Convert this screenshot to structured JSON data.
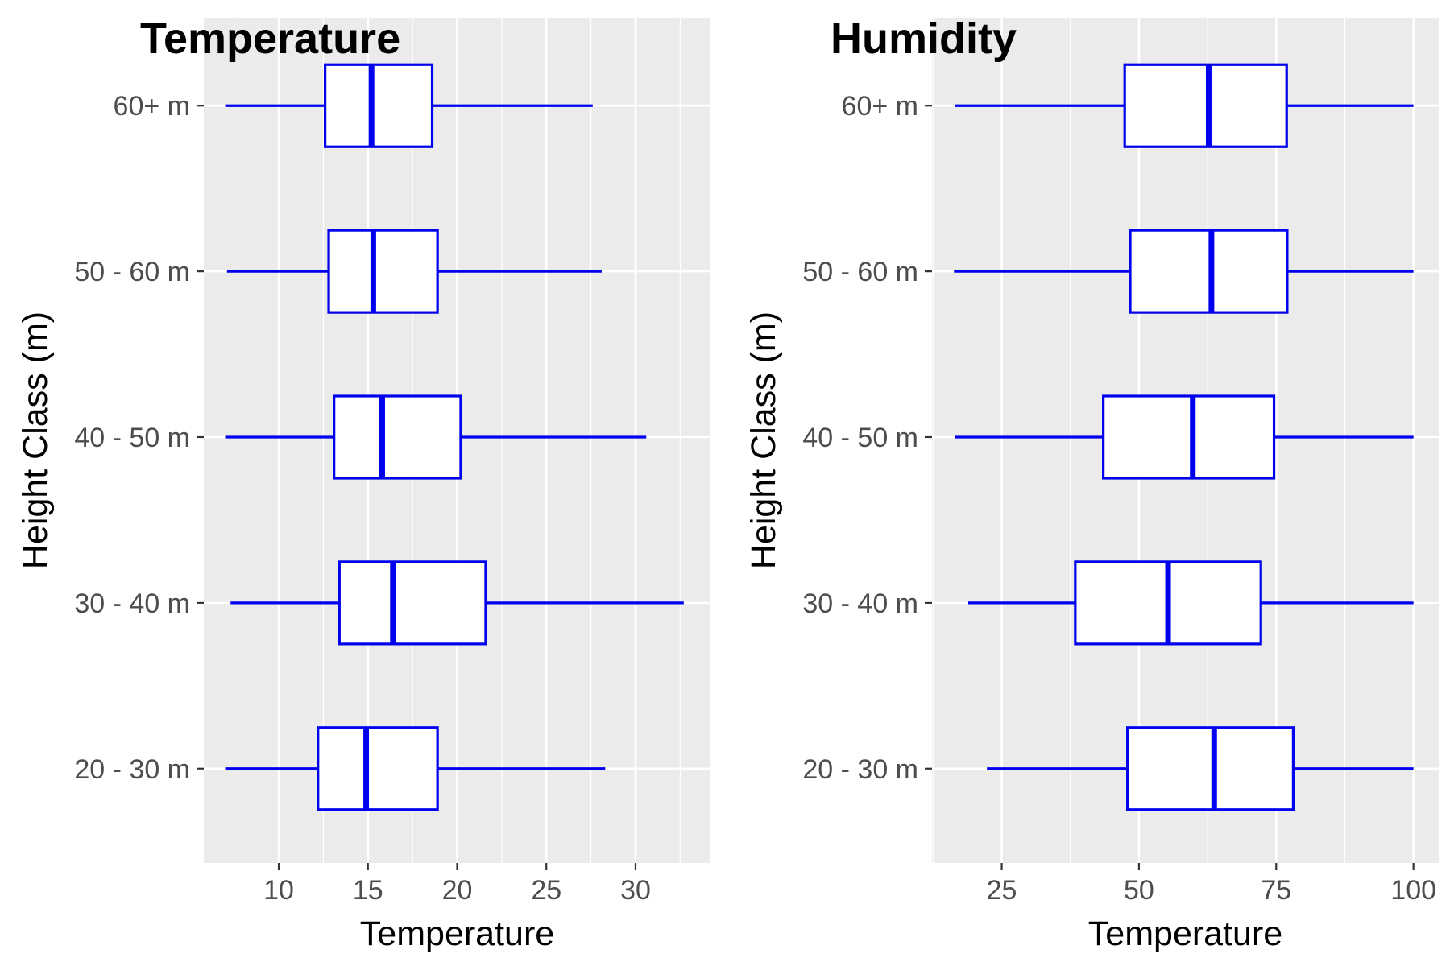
{
  "chart_data": [
    {
      "type": "boxplot",
      "orientation": "horizontal",
      "title": "Temperature",
      "xlabel": "Temperature",
      "ylabel": "Height Class (m)",
      "xlim": [
        5.8,
        34.2
      ],
      "xticks": [
        10,
        15,
        20,
        25,
        30
      ],
      "categories": [
        "20 - 30 m",
        "30 - 40 m",
        "40 - 50 m",
        "50 - 60 m",
        "60+ m"
      ],
      "boxes": [
        {
          "category": "20 - 30 m",
          "min": 7.0,
          "q1": 12.2,
          "median": 14.9,
          "q3": 18.9,
          "max": 28.3
        },
        {
          "category": "30 - 40 m",
          "min": 7.3,
          "q1": 13.4,
          "median": 16.4,
          "q3": 21.6,
          "max": 32.7
        },
        {
          "category": "40 - 50 m",
          "min": 7.0,
          "q1": 13.1,
          "median": 15.8,
          "q3": 20.2,
          "max": 30.6
        },
        {
          "category": "50 - 60 m",
          "min": 7.1,
          "q1": 12.8,
          "median": 15.3,
          "q3": 18.9,
          "max": 28.1
        },
        {
          "category": "60+ m",
          "min": 7.0,
          "q1": 12.6,
          "median": 15.2,
          "q3": 18.6,
          "max": 27.6
        }
      ],
      "grid": true,
      "box_color": "#0000ee",
      "panel_background": "#ebebeb"
    },
    {
      "type": "boxplot",
      "orientation": "horizontal",
      "title": "Humidity",
      "xlabel": "Temperature",
      "ylabel": "Height Class (m)",
      "xlim": [
        12.3,
        104.6
      ],
      "xticks": [
        25,
        50,
        75,
        100
      ],
      "categories": [
        "20 - 30 m",
        "30 - 40 m",
        "40 - 50 m",
        "50 - 60 m",
        "60+ m"
      ],
      "boxes": [
        {
          "category": "20 - 30 m",
          "min": 22.3,
          "q1": 47.9,
          "median": 63.7,
          "q3": 78.1,
          "max": 100
        },
        {
          "category": "30 - 40 m",
          "min": 18.9,
          "q1": 38.4,
          "median": 55.3,
          "q3": 72.2,
          "max": 100
        },
        {
          "category": "40 - 50 m",
          "min": 16.5,
          "q1": 43.5,
          "median": 59.8,
          "q3": 74.6,
          "max": 100
        },
        {
          "category": "50 - 60 m",
          "min": 16.3,
          "q1": 48.4,
          "median": 63.2,
          "q3": 77.0,
          "max": 100
        },
        {
          "category": "60+ m",
          "min": 16.5,
          "q1": 47.4,
          "median": 62.7,
          "q3": 76.9,
          "max": 100
        }
      ],
      "grid": true,
      "box_color": "#0000ee",
      "panel_background": "#ebebeb"
    }
  ]
}
